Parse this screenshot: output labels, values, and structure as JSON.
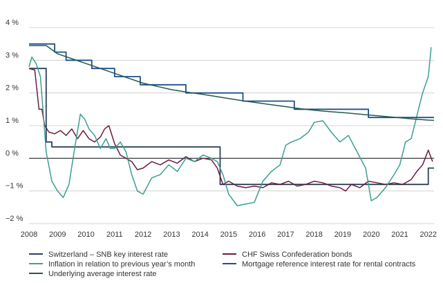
{
  "chart_data": {
    "type": "line",
    "title": "",
    "xlabel": "",
    "ylabel": "",
    "xlim": [
      2008,
      2022.2
    ],
    "ylim": [
      -2,
      4
    ],
    "x_ticks": [
      "2008",
      "2009",
      "2010",
      "2011",
      "2012",
      "2013",
      "2014",
      "2015",
      "2016",
      "2017",
      "2018",
      "2019",
      "2020",
      "2021",
      "2022"
    ],
    "y_ticks": [
      "4 %",
      "3 %",
      "2 %",
      "1 %",
      "0 %",
      "−1 %",
      "−2 %"
    ],
    "grid": true,
    "legend_position": "bottom",
    "series": [
      {
        "name": "Switzerland – SNB key interest rate",
        "color": "#2b3f5c",
        "step": true,
        "x": [
          2008.0,
          2008.4,
          2008.6,
          2008.8,
          2009.0,
          2014.7,
          2022.0,
          2022.2
        ],
        "y": [
          2.75,
          2.75,
          0.5,
          0.35,
          0.35,
          -0.8,
          -0.3,
          -0.3
        ]
      },
      {
        "name": "CHF Swiss Confederation bonds",
        "color": "#6e1a3c",
        "step": false,
        "x": [
          2008.0,
          2008.2,
          2008.35,
          2008.45,
          2008.55,
          2008.7,
          2008.9,
          2009.1,
          2009.3,
          2009.5,
          2009.7,
          2009.9,
          2010.1,
          2010.3,
          2010.5,
          2010.65,
          2010.8,
          2011.0,
          2011.2,
          2011.4,
          2011.6,
          2011.8,
          2012.0,
          2012.3,
          2012.6,
          2012.9,
          2013.2,
          2013.5,
          2013.8,
          2014.1,
          2014.4,
          2014.6,
          2014.8,
          2015.0,
          2015.3,
          2015.6,
          2015.9,
          2016.2,
          2016.5,
          2016.8,
          2017.1,
          2017.4,
          2017.7,
          2018.0,
          2018.3,
          2018.6,
          2018.9,
          2019.1,
          2019.3,
          2019.6,
          2019.9,
          2020.2,
          2020.5,
          2020.8,
          2021.1,
          2021.4,
          2021.6,
          2021.8,
          2022.0,
          2022.15
        ],
        "y": [
          2.75,
          2.7,
          1.5,
          1.5,
          1.0,
          0.8,
          0.75,
          0.85,
          0.7,
          0.9,
          0.6,
          0.85,
          0.6,
          0.5,
          0.65,
          0.9,
          1.0,
          0.45,
          0.1,
          0.0,
          -0.1,
          -0.35,
          -0.3,
          -0.1,
          -0.2,
          -0.05,
          -0.15,
          0.05,
          -0.1,
          0.0,
          -0.05,
          -0.3,
          -0.8,
          -0.7,
          -0.85,
          -0.9,
          -0.85,
          -0.9,
          -0.75,
          -0.8,
          -0.7,
          -0.85,
          -0.8,
          -0.7,
          -0.75,
          -0.85,
          -0.9,
          -1.0,
          -0.8,
          -0.9,
          -0.7,
          -0.75,
          -0.8,
          -0.75,
          -0.8,
          -0.65,
          -0.4,
          -0.2,
          0.25,
          -0.1
        ]
      },
      {
        "name": "Inflation in relation to previous year’s month",
        "color": "#3a9e93",
        "step": false,
        "x": [
          2008.0,
          2008.1,
          2008.25,
          2008.4,
          2008.6,
          2008.8,
          2009.0,
          2009.2,
          2009.4,
          2009.6,
          2009.8,
          2009.95,
          2010.1,
          2010.3,
          2010.5,
          2010.7,
          2010.85,
          2011.0,
          2011.2,
          2011.4,
          2011.6,
          2011.8,
          2012.0,
          2012.3,
          2012.6,
          2012.9,
          2013.2,
          2013.5,
          2013.8,
          2014.1,
          2014.4,
          2014.6,
          2014.8,
          2015.0,
          2015.3,
          2015.6,
          2015.9,
          2016.2,
          2016.5,
          2016.8,
          2017.0,
          2017.2,
          2017.5,
          2017.8,
          2018.0,
          2018.3,
          2018.6,
          2018.9,
          2019.2,
          2019.5,
          2019.8,
          2020.0,
          2020.2,
          2020.5,
          2020.8,
          2021.0,
          2021.2,
          2021.4,
          2021.6,
          2021.8,
          2022.0,
          2022.1
        ],
        "y": [
          2.8,
          3.1,
          2.9,
          2.5,
          0.2,
          -0.7,
          -1.0,
          -1.2,
          -0.8,
          0.3,
          1.35,
          1.2,
          0.9,
          0.7,
          0.3,
          0.6,
          0.3,
          0.3,
          0.5,
          0.2,
          -0.5,
          -1.0,
          -1.1,
          -0.6,
          -0.5,
          -0.2,
          -0.4,
          0.0,
          -0.1,
          0.1,
          0.0,
          -0.1,
          -0.5,
          -1.1,
          -1.45,
          -1.4,
          -1.35,
          -0.7,
          -0.4,
          -0.2,
          0.4,
          0.5,
          0.6,
          0.8,
          1.1,
          1.15,
          0.8,
          0.5,
          0.7,
          0.2,
          -0.3,
          -1.3,
          -1.2,
          -0.9,
          -0.5,
          -0.2,
          0.5,
          0.6,
          1.3,
          2.0,
          2.5,
          3.4
        ]
      },
      {
        "name": "Mortgage reference interest rate for rental contracts",
        "color": "#1f4e8c",
        "step": true,
        "x": [
          2008.0,
          2008.9,
          2009.3,
          2010.2,
          2011.0,
          2011.9,
          2012.6,
          2013.5,
          2014.5,
          2015.5,
          2017.3,
          2019.9,
          2022.2
        ],
        "y": [
          3.5,
          3.25,
          3.0,
          2.75,
          2.5,
          2.25,
          2.25,
          2.0,
          2.0,
          1.75,
          1.5,
          1.25,
          1.25
        ]
      },
      {
        "name": "Underlying average interest rate",
        "color": "#1f5a4c",
        "step": false,
        "x": [
          2008.0,
          2008.6,
          2009.0,
          2009.5,
          2010.0,
          2010.5,
          2011.0,
          2011.5,
          2012.0,
          2012.5,
          2013.0,
          2013.5,
          2014.0,
          2014.5,
          2015.0,
          2015.5,
          2016.0,
          2016.5,
          2017.0,
          2017.5,
          2018.0,
          2018.5,
          2019.0,
          2019.5,
          2020.0,
          2020.5,
          2021.0,
          2021.5,
          2022.0,
          2022.2
        ],
        "y": [
          3.45,
          3.45,
          3.2,
          3.05,
          2.9,
          2.75,
          2.6,
          2.45,
          2.3,
          2.2,
          2.1,
          2.03,
          1.97,
          1.9,
          1.83,
          1.76,
          1.7,
          1.64,
          1.58,
          1.52,
          1.47,
          1.43,
          1.4,
          1.36,
          1.32,
          1.28,
          1.24,
          1.2,
          1.17,
          1.16
        ]
      }
    ]
  }
}
